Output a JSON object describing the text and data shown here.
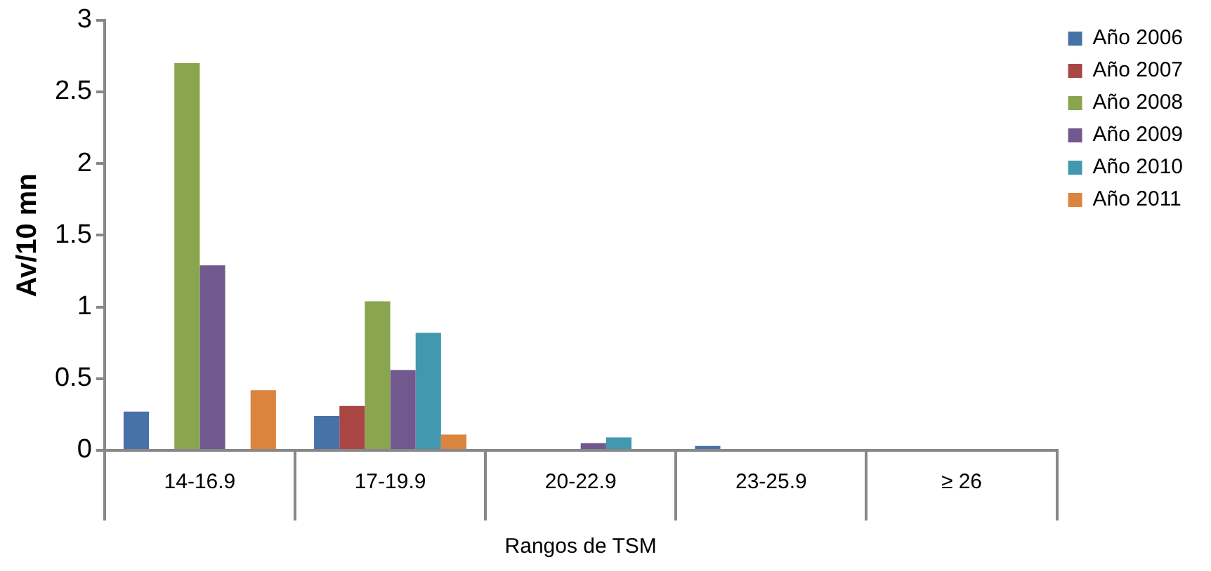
{
  "chart_data": {
    "type": "bar",
    "xlabel": "Rangos de TSM",
    "ylabel": "Av/10 mn",
    "categories": [
      "14-16.9",
      "17-19.9",
      "20-22.9",
      "23-25.9",
      "≥ 26"
    ],
    "series": [
      {
        "name": "Año 2006",
        "color": "#4672a8",
        "values": [
          0.27,
          0.24,
          0,
          0.03,
          0
        ]
      },
      {
        "name": "Año 2007",
        "color": "#a94644",
        "values": [
          0,
          0.31,
          0,
          0,
          0
        ]
      },
      {
        "name": "Año 2008",
        "color": "#89a54e",
        "values": [
          2.7,
          1.04,
          0.01,
          0,
          0
        ]
      },
      {
        "name": "Año 2009",
        "color": "#71588f",
        "values": [
          1.29,
          0.56,
          0.05,
          0,
          0
        ]
      },
      {
        "name": "Año 2010",
        "color": "#4198af",
        "values": [
          0,
          0.82,
          0.09,
          0,
          0
        ]
      },
      {
        "name": "Año 2011",
        "color": "#db843d",
        "values": [
          0.42,
          0.11,
          0,
          0,
          0
        ]
      }
    ],
    "ylim": [
      0,
      3
    ],
    "yticks": [
      0,
      0.5,
      1,
      1.5,
      2,
      2.5,
      3
    ],
    "grid": false,
    "legend": "right"
  }
}
